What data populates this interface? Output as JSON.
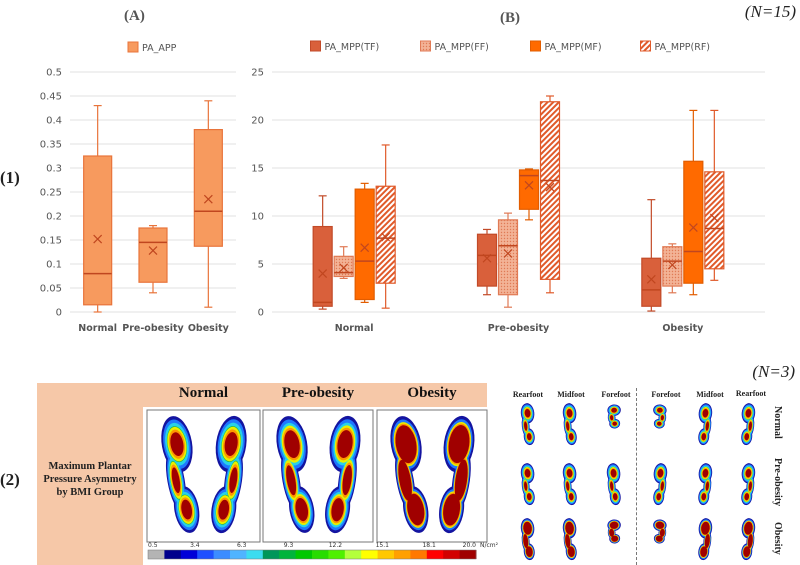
{
  "panel_labels": {
    "row1": "(1)",
    "row2": "(2)"
  },
  "sample_sizes": {
    "row1": "(N=15)",
    "row2": "(N=3)"
  },
  "chart_data": [
    {
      "type": "box",
      "title": "(A)",
      "categories": [
        "Normal",
        "Pre-obesity",
        "Obesity"
      ],
      "ylim": [
        0,
        0.5
      ],
      "yticks": [
        0,
        0.05,
        0.1,
        0.15,
        0.2,
        0.25,
        0.3,
        0.35,
        0.4,
        0.45,
        0.5
      ],
      "grid": true,
      "legend_position": "top",
      "series": [
        {
          "name": "PA_APP",
          "color": "#f79a5e",
          "stroke": "#e8743b",
          "fill_style": "solid",
          "boxes": [
            {
              "min": 0.0,
              "q1": 0.015,
              "median": 0.08,
              "q3": 0.325,
              "max": 0.43,
              "mean": 0.152
            },
            {
              "min": 0.04,
              "q1": 0.062,
              "median": 0.145,
              "q3": 0.175,
              "max": 0.18,
              "mean": 0.128
            },
            {
              "min": 0.01,
              "q1": 0.137,
              "median": 0.21,
              "q3": 0.38,
              "max": 0.44,
              "mean": 0.235
            }
          ]
        }
      ]
    },
    {
      "type": "box",
      "title": "(B)",
      "categories": [
        "Normal",
        "Pre-obesity",
        "Obesity"
      ],
      "ylim": [
        0,
        25
      ],
      "yticks": [
        0,
        5,
        10,
        15,
        20,
        25
      ],
      "grid": true,
      "legend_position": "top",
      "series": [
        {
          "name": "PA_MPP(TF)",
          "color": "#d9603b",
          "stroke": "#c24a28",
          "fill_style": "solid",
          "boxes": [
            {
              "min": 0.3,
              "q1": 0.6,
              "median": 1.0,
              "q3": 8.9,
              "max": 12.1,
              "mean": 4.0
            },
            {
              "min": 1.8,
              "q1": 2.7,
              "median": 5.9,
              "q3": 8.1,
              "max": 8.6,
              "mean": 5.6
            },
            {
              "min": 0.1,
              "q1": 0.6,
              "median": 2.3,
              "q3": 5.6,
              "max": 11.7,
              "mean": 3.4
            }
          ]
        },
        {
          "name": "PA_MPP(FF)",
          "color": "#f0a080",
          "stroke": "#e07a55",
          "fill_style": "dotted",
          "boxes": [
            {
              "min": 3.5,
              "q1": 3.7,
              "median": 4.1,
              "q3": 5.8,
              "max": 6.8,
              "mean": 4.6
            },
            {
              "min": 0.5,
              "q1": 1.8,
              "median": 6.9,
              "q3": 9.6,
              "max": 10.3,
              "mean": 6.1
            },
            {
              "min": 2.0,
              "q1": 2.7,
              "median": 5.3,
              "q3": 6.8,
              "max": 7.1,
              "mean": 4.9
            }
          ]
        },
        {
          "name": "PA_MPP(MF)",
          "color": "#ff6a00",
          "stroke": "#e25d00",
          "fill_style": "solid",
          "boxes": [
            {
              "min": 1.0,
              "q1": 1.3,
              "median": 5.3,
              "q3": 12.8,
              "max": 13.4,
              "mean": 6.7
            },
            {
              "min": 9.6,
              "q1": 10.7,
              "median": 14.2,
              "q3": 14.8,
              "max": 14.9,
              "mean": 13.2
            },
            {
              "min": 1.8,
              "q1": 3.0,
              "median": 6.3,
              "q3": 15.7,
              "max": 21.0,
              "mean": 8.8
            }
          ]
        },
        {
          "name": "PA_MPP(RF)",
          "color": "#e05a2a",
          "stroke": "#e05a2a",
          "fill_style": "hatched",
          "boxes": [
            {
              "min": 0.4,
              "q1": 3.0,
              "median": 7.7,
              "q3": 13.1,
              "max": 17.4,
              "mean": 7.8
            },
            {
              "min": 2.0,
              "q1": 3.4,
              "median": 13.7,
              "q3": 21.9,
              "max": 22.5,
              "mean": 13.0
            },
            {
              "min": 3.3,
              "q1": 4.5,
              "median": 8.7,
              "q3": 14.6,
              "max": 21.0,
              "mean": 9.8
            }
          ]
        }
      ]
    }
  ],
  "pressure_panel": {
    "row_title": "Maximum Plantar Pressure Asymmetry by BMI Group",
    "groups": [
      "Normal",
      "Pre-obesity",
      "Obesity"
    ],
    "colorbar": {
      "ticks": [
        "0.5",
        "3.4",
        "6.3",
        "9.3",
        "12.2",
        "15.1",
        "18.1",
        "20.0"
      ],
      "unit": "N/cm²",
      "colors": [
        "#b4b4b4",
        "#00008c",
        "#0000d8",
        "#1e50ff",
        "#3c8cff",
        "#50b4ff",
        "#3cdcf0",
        "#00965a",
        "#00b43c",
        "#00c800",
        "#28dc00",
        "#50f000",
        "#b4ff3c",
        "#ffff00",
        "#ffc800",
        "#ffa000",
        "#ff7800",
        "#ff0000",
        "#d20000",
        "#a00000"
      ]
    }
  },
  "foot_grid": {
    "left_columns": [
      "Rearfoot",
      "Midfoot",
      "Forefoot"
    ],
    "right_columns": [
      "Forefoot",
      "Midfoot",
      "Rearfoot"
    ],
    "rows": [
      "Normal",
      "Pre-obesity",
      "Obesity"
    ]
  }
}
